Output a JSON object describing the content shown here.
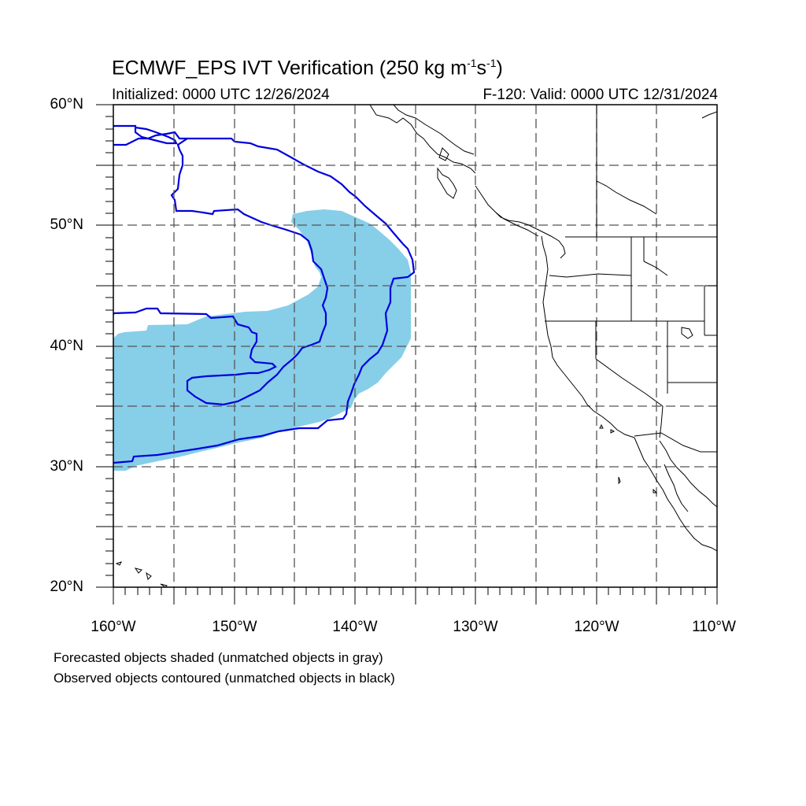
{
  "title": {
    "main": "ECMWF_EPS IVT Verification (250 kg m",
    "exp1": "-1",
    "mid": "s",
    "exp2": "-1",
    "end": ")"
  },
  "subtitle_left": "Initialized: 0000 UTC 12/26/2024",
  "subtitle_right": "F-120: Valid: 0000 UTC 12/31/2024",
  "lat_labels": [
    "60°N",
    "50°N",
    "40°N",
    "30°N",
    "20°N"
  ],
  "lon_labels": [
    "160°W",
    "150°W",
    "140°W",
    "130°W",
    "120°W",
    "110°W"
  ],
  "footnotes": [
    "Forecasted objects shaded (unmatched objects in gray)",
    "Observed objects contoured (unmatched objects in black)"
  ],
  "colors": {
    "forecast_fill": "#87CEE8",
    "observed_contour": "#0000DD",
    "coastline": "#000000",
    "grid": "#555555"
  },
  "map_extent": {
    "lon": [
      -160,
      -110
    ],
    "lat": [
      20,
      60
    ]
  }
}
